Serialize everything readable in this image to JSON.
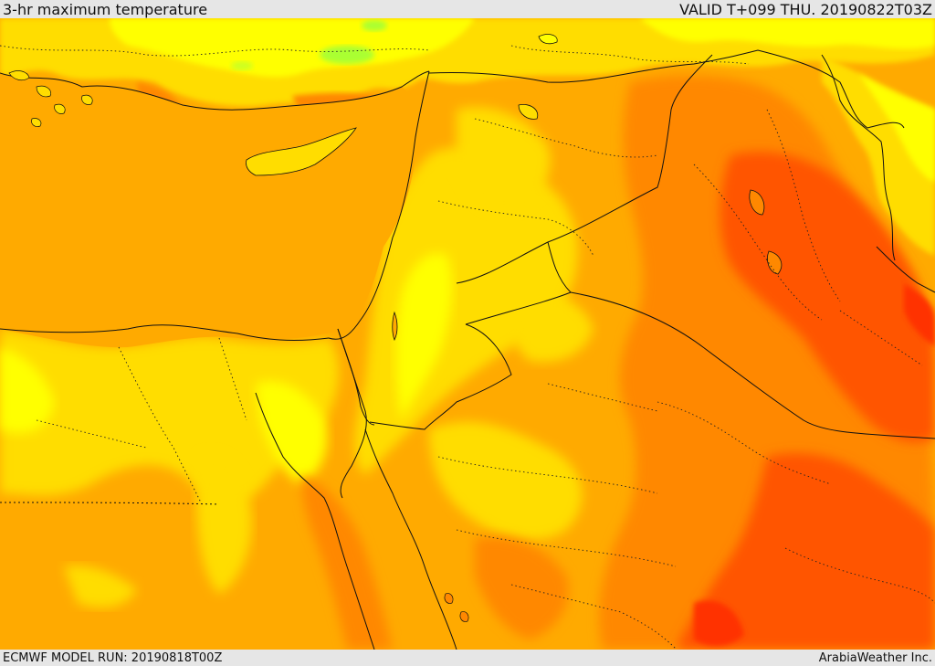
{
  "header": {
    "title": "3-hr maximum temperature",
    "valid": "VALID T+099 THU. 20190822T03Z"
  },
  "footer": {
    "model_run": "ECMWF MODEL RUN: 20190818T00Z",
    "brand": "ArabiaWeather Inc."
  },
  "colors": {
    "frame_bg": "#e6e6e6",
    "sea_orange": "#ffaa00",
    "warm_yellow": "#ffdd00",
    "pale_yellow": "#ffff00",
    "deep_orange": "#ff8800",
    "hot_orange": "#ff5500",
    "very_hot": "#ff3300",
    "cool_green": "#aaff33",
    "border_line": "#111111"
  }
}
